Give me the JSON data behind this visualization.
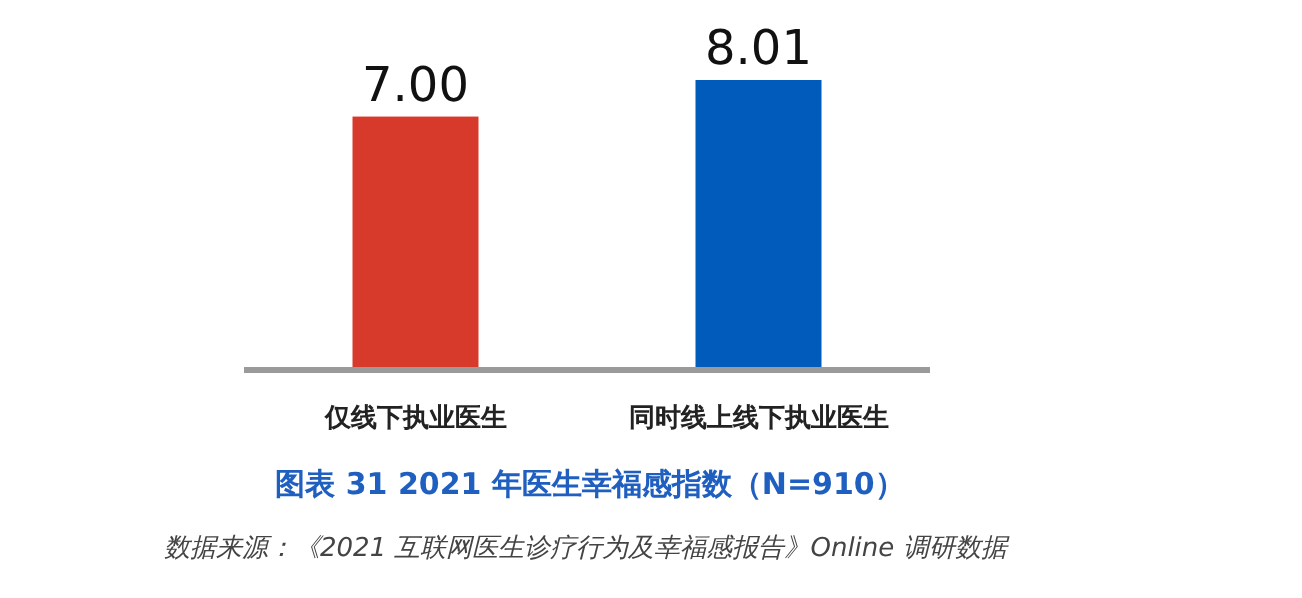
{
  "chart_data": {
    "type": "bar",
    "title": "图表 31 2021 年医生幸福感指数（N=910）",
    "categories": [
      "仅线下执业医生",
      "同时线上线下执业医生"
    ],
    "values": [
      7.0,
      8.01
    ],
    "colors": [
      "#d73a2b",
      "#005bbb"
    ],
    "value_labels": [
      "7.00",
      "8.01"
    ],
    "annotations": [
      "数据来源：《2021 互联网医生诊疗行为及幸福感报告》Online 调研数据"
    ]
  }
}
